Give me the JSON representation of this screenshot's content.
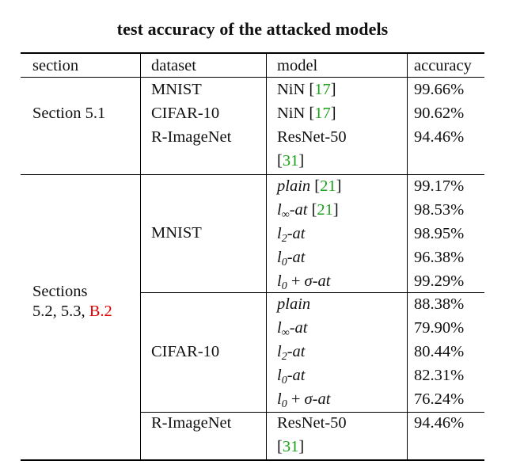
{
  "title": "test accuracy of the attacked models",
  "headers": {
    "section": "section",
    "dataset": "dataset",
    "model": "model",
    "accuracy": "accuracy"
  },
  "group1": {
    "section": "Section 5.1",
    "rows": [
      {
        "dataset": "MNIST",
        "model": "NiN [",
        "cite": "17",
        "close": "]",
        "accuracy": "99.66%"
      },
      {
        "dataset": "CIFAR-10",
        "model": "NiN [",
        "cite": "17",
        "close": "]",
        "accuracy": "90.62%"
      },
      {
        "dataset": "R-ImageNet",
        "model": "ResNet-50",
        "model_line2_open": "[",
        "cite": "31",
        "close": "]",
        "accuracy": "94.46%"
      }
    ]
  },
  "group2": {
    "section_line1": "Sections",
    "section_line2": "5.2, 5.3, ",
    "section_ref": "B.2",
    "mnist": {
      "dataset": "MNIST",
      "rows": [
        {
          "model": "plain",
          "cite_open": " [",
          "cite": "21",
          "close": "]",
          "accuracy": "99.17%"
        },
        {
          "model_l": "l",
          "model_sub": "∞",
          "model_rest": "-at",
          "cite_open": " [",
          "cite": "21",
          "close": "]",
          "accuracy": "98.53%"
        },
        {
          "model_l": "l",
          "model_sub": "2",
          "model_rest": "-at",
          "accuracy": "98.95%"
        },
        {
          "model_l": "l",
          "model_sub": "0",
          "model_rest": "-at",
          "accuracy": "96.38%"
        },
        {
          "model_l": "l",
          "model_sub": "0",
          "model_plus": " + ",
          "model_sigma": "σ",
          "model_rest": "-at",
          "accuracy": "99.29%"
        }
      ]
    },
    "cifar": {
      "dataset": "CIFAR-10",
      "rows": [
        {
          "model": "plain",
          "accuracy": "88.38%"
        },
        {
          "model_l": "l",
          "model_sub": "∞",
          "model_rest": "-at",
          "accuracy": "79.90%"
        },
        {
          "model_l": "l",
          "model_sub": "2",
          "model_rest": "-at",
          "accuracy": "80.44%"
        },
        {
          "model_l": "l",
          "model_sub": "0",
          "model_rest": "-at",
          "accuracy": "82.31%"
        },
        {
          "model_l": "l",
          "model_sub": "0",
          "model_plus": " + ",
          "model_sigma": "σ",
          "model_rest": "-at",
          "accuracy": "76.24%"
        }
      ]
    },
    "rimagenet": {
      "dataset": "R-ImageNet",
      "model": "ResNet-50",
      "model_line2_open": "[",
      "cite": "31",
      "close": "]",
      "accuracy": "94.46%"
    }
  }
}
